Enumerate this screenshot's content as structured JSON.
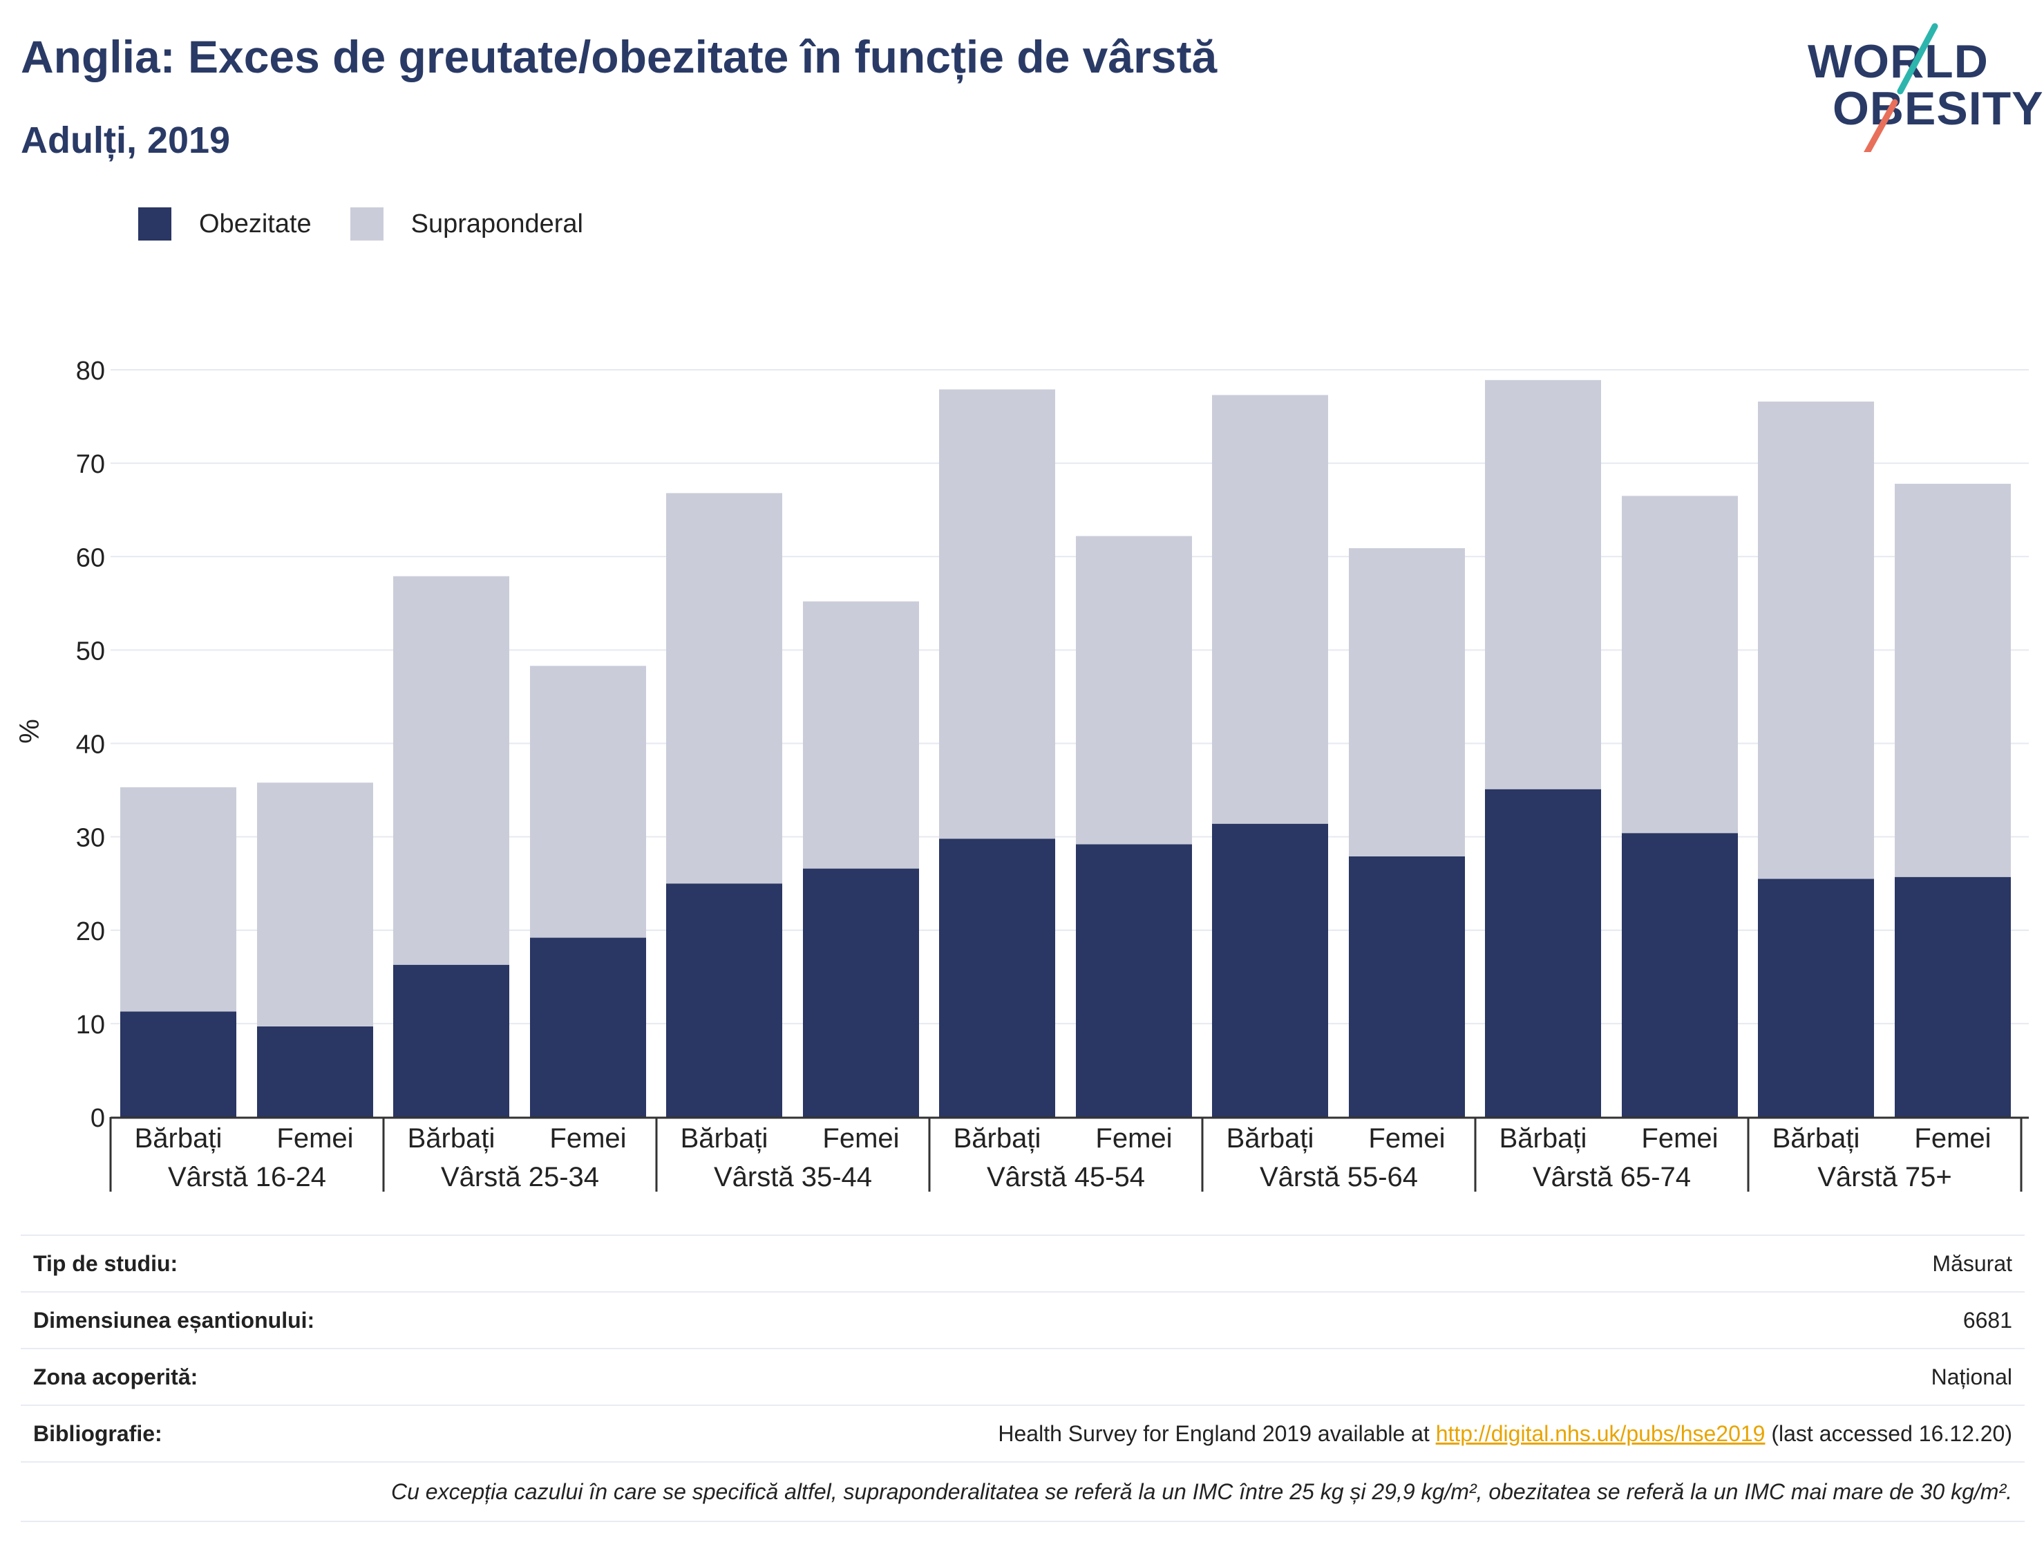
{
  "header": {
    "title": "Anglia: Exces de greutate/obezitate în funcție de vârstă",
    "subtitle": "Adulți, 2019"
  },
  "logo": {
    "line1": "WORLD",
    "line2": "OBESITY",
    "accent_colors": [
      "#2bb5ad",
      "#e86f5a"
    ]
  },
  "legend": [
    {
      "label": "Obezitate",
      "color": "#2a3663"
    },
    {
      "label": "Supraponderal",
      "color": "#cacdd9"
    }
  ],
  "chart_data": {
    "type": "bar",
    "stacked": true,
    "ylabel": "%",
    "ylim": [
      0,
      80
    ],
    "yticks": [
      0,
      10,
      20,
      30,
      40,
      50,
      60,
      70,
      80
    ],
    "grid": true,
    "legend_position": "top-left",
    "groups": [
      "Vârstă 16-24",
      "Vârstă 25-34",
      "Vârstă 35-44",
      "Vârstă 45-54",
      "Vârstă 55-64",
      "Vârstă 65-74",
      "Vârstă 75+"
    ],
    "sub_categories": [
      "Bărbați",
      "Femei"
    ],
    "categories": [
      "Bărbați",
      "Femei",
      "Bărbați",
      "Femei",
      "Bărbați",
      "Femei",
      "Bărbați",
      "Femei",
      "Bărbați",
      "Femei",
      "Bărbați",
      "Femei",
      "Bărbați",
      "Femei"
    ],
    "series": [
      {
        "name": "Obezitate",
        "color": "#2a3663",
        "values": [
          11.3,
          9.7,
          16.3,
          19.2,
          25.0,
          26.6,
          29.8,
          29.2,
          31.4,
          27.9,
          35.1,
          30.4,
          25.5,
          25.7
        ]
      },
      {
        "name": "Supraponderal",
        "color": "#cacdd9",
        "values": [
          24.0,
          26.1,
          41.6,
          29.1,
          41.8,
          28.6,
          48.1,
          33.0,
          45.9,
          33.0,
          43.8,
          36.1,
          51.1,
          42.1
        ]
      }
    ],
    "totals": [
      35.3,
      35.8,
      57.9,
      48.3,
      66.8,
      55.2,
      77.9,
      62.2,
      77.3,
      60.9,
      78.9,
      66.5,
      76.6,
      67.8
    ]
  },
  "info": {
    "study_type": {
      "label": "Tip de studiu:",
      "value": "Măsurat"
    },
    "sample_size": {
      "label": "Dimensiunea eșantionului:",
      "value": "6681"
    },
    "coverage": {
      "label": "Zona acoperită:",
      "value": "Național"
    },
    "bibliography": {
      "label": "Bibliografie:",
      "prefix": "Health Survey for England 2019 available at",
      "link": "http://digital.nhs.uk/pubs/hse2019",
      "suffix": "(last accessed 16.12.20)"
    },
    "note": "Cu excepția cazului în care se specifică altfel, supraponderalitatea se referă la un IMC între 25 kg și 29,9 kg/m², obezitatea se referă la un IMC mai mare de 30 kg/m²."
  }
}
